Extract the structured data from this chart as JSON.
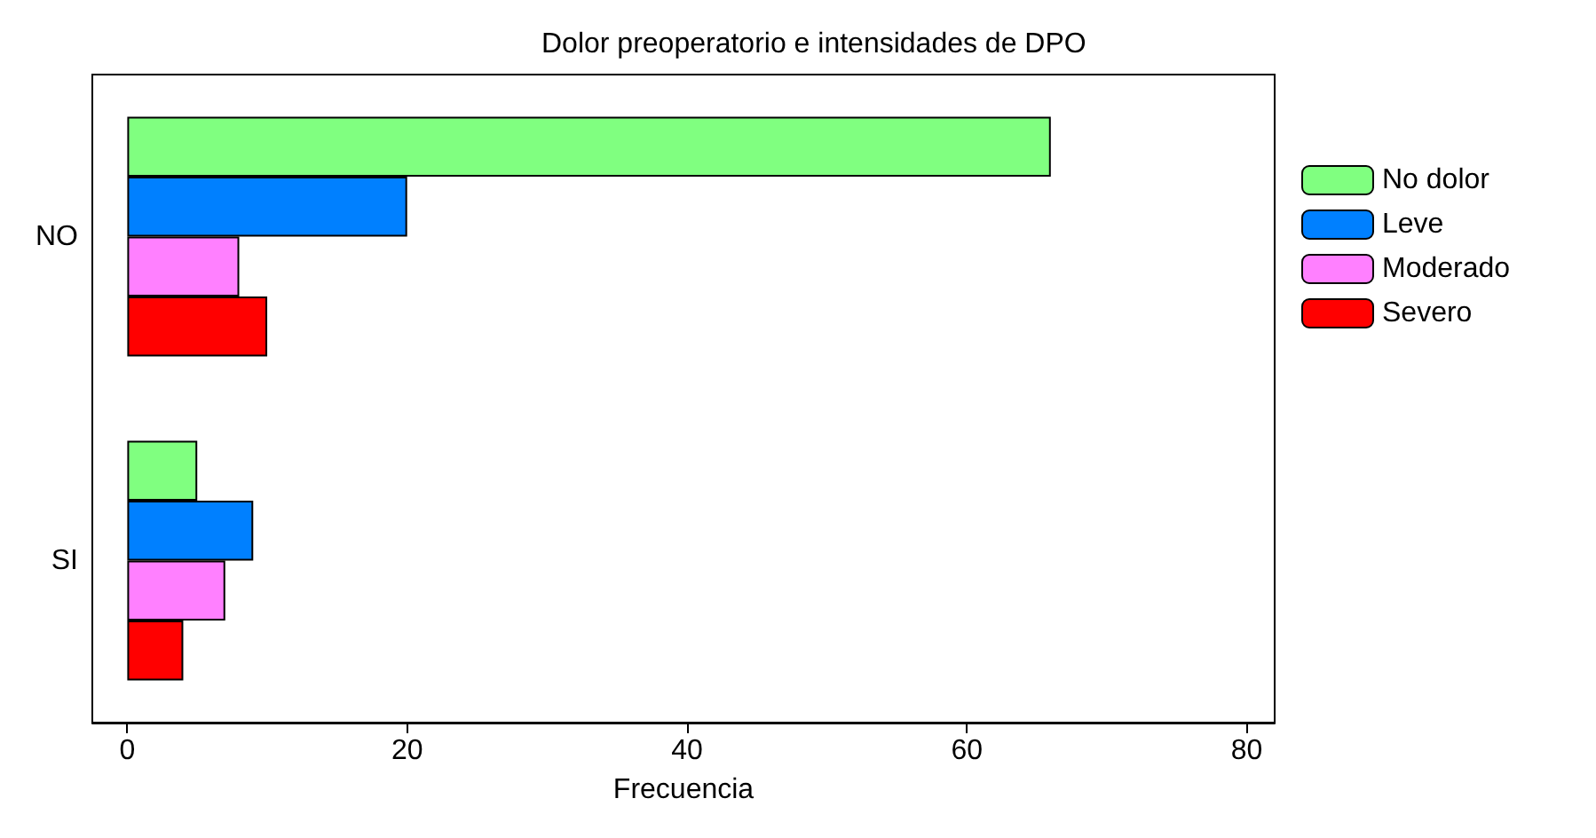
{
  "chart_data": {
    "type": "bar",
    "orientation": "horizontal",
    "title": "Dolor preoperatorio e intensidades de DPO",
    "xlabel": "Frecuencia",
    "categories": [
      "NO",
      "SI"
    ],
    "series": [
      {
        "name": "No dolor",
        "color": "#80ff80",
        "values": [
          66,
          5
        ]
      },
      {
        "name": "Leve",
        "color": "#0080ff",
        "values": [
          20,
          9
        ]
      },
      {
        "name": "Moderado",
        "color": "#ff80ff",
        "values": [
          8,
          7
        ]
      },
      {
        "name": "Severo",
        "color": "#ff0000",
        "values": [
          10,
          4
        ]
      }
    ],
    "xlim": [
      -2.5,
      82
    ],
    "xticks": [
      0,
      20,
      40,
      60,
      80
    ],
    "grid": false,
    "legend": "top right"
  }
}
